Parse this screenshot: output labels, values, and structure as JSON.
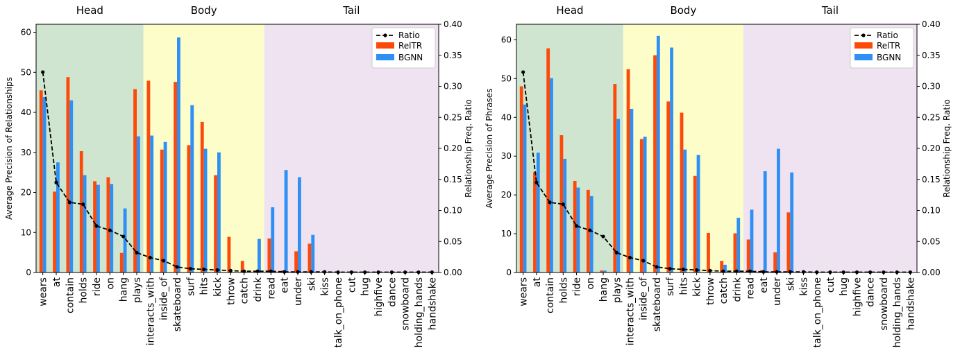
{
  "chart_data": [
    {
      "type": "bar",
      "ylabel": "Average Precision of Relationships",
      "y2label": "Relationship Freq. Ratio",
      "ylim": [
        0,
        62
      ],
      "yticks": [
        0,
        10,
        20,
        30,
        40,
        50,
        60
      ],
      "y2lim": [
        0,
        0.4
      ],
      "y2ticks": [
        "0.00",
        "0.05",
        "0.10",
        "0.15",
        "0.20",
        "0.25",
        "0.30",
        "0.35",
        "0.40"
      ],
      "regions": [
        {
          "name": "Head",
          "color": "#cfe5cf",
          "start": 0,
          "end": 8
        },
        {
          "name": "Body",
          "color": "#fdfdca",
          "start": 8,
          "end": 17
        },
        {
          "name": "Tail",
          "color": "#efe3f1",
          "start": 17,
          "end": 30
        }
      ],
      "categories": [
        "wears",
        "at",
        "contain",
        "holds",
        "ride",
        "on",
        "hang",
        "plays",
        "interacts_with",
        "inside_of",
        "skateboard",
        "surf",
        "hits",
        "kick",
        "throw",
        "catch",
        "drink",
        "read",
        "eat",
        "under",
        "ski",
        "kiss",
        "talk_on_phone",
        "cut",
        "hug",
        "highfive",
        "dance",
        "snowboard",
        "holding_hands",
        "handshake"
      ],
      "series": [
        {
          "name": "RelTR",
          "color": "#fc4a0a",
          "values": [
            45.5,
            20.2,
            48.8,
            30.3,
            22.8,
            23.8,
            4.9,
            45.8,
            47.9,
            30.7,
            47.6,
            31.8,
            37.6,
            24.3,
            8.9,
            2.9,
            0.3,
            8.5,
            0.5,
            5.3,
            7.2,
            0,
            0,
            0,
            0,
            0,
            0,
            0,
            0,
            0
          ]
        },
        {
          "name": "BGNN",
          "color": "#2e8ff5",
          "values": [
            43.8,
            27.5,
            43.0,
            24.3,
            21.9,
            22.1,
            16.0,
            34.0,
            34.2,
            32.6,
            58.7,
            41.8,
            30.9,
            30.0,
            0,
            0,
            8.4,
            16.3,
            25.6,
            23.8,
            9.4,
            0,
            0,
            0,
            0,
            0,
            0,
            0,
            0,
            0
          ]
        }
      ],
      "ratio": {
        "name": "Ratio",
        "color": "#000000",
        "values": [
          0.323,
          0.145,
          0.113,
          0.11,
          0.075,
          0.068,
          0.058,
          0.032,
          0.024,
          0.019,
          0.009,
          0.006,
          0.005,
          0.004,
          0.003,
          0.002,
          0.002,
          0.002,
          0.001,
          0.001,
          0.001,
          0.001,
          0.0005,
          0.0005,
          0.0005,
          0.0005,
          0.0005,
          0.0005,
          0.0005,
          0.0005
        ]
      },
      "legend": "top-right",
      "grid": false
    },
    {
      "type": "bar",
      "ylabel": "Average Precision of Phrases",
      "y2label": "Relationship Freq. Ratio",
      "ylim": [
        0,
        64
      ],
      "yticks": [
        0,
        10,
        20,
        30,
        40,
        50,
        60
      ],
      "y2lim": [
        0,
        0.4
      ],
      "y2ticks": [
        "0.00",
        "0.05",
        "0.10",
        "0.15",
        "0.20",
        "0.25",
        "0.30",
        "0.35",
        "0.40"
      ],
      "regions": [
        {
          "name": "Head",
          "color": "#cfe5cf",
          "start": 0,
          "end": 8
        },
        {
          "name": "Body",
          "color": "#fdfdca",
          "start": 8,
          "end": 17
        },
        {
          "name": "Tail",
          "color": "#efe3f1",
          "start": 17,
          "end": 30
        }
      ],
      "categories": [
        "wears",
        "at",
        "contain",
        "holds",
        "ride",
        "on",
        "hang",
        "plays",
        "interacts_with",
        "inside_of",
        "skateboard",
        "surf",
        "hits",
        "kick",
        "throw",
        "catch",
        "drink",
        "read",
        "eat",
        "under",
        "ski",
        "kiss",
        "talk_on_phone",
        "cut",
        "hug",
        "highfive",
        "dance",
        "snowboard",
        "holding_hands",
        "handshake"
      ],
      "series": [
        {
          "name": "RelTR",
          "color": "#fc4a0a",
          "values": [
            48.0,
            25.9,
            57.8,
            35.4,
            23.6,
            21.3,
            0.5,
            48.6,
            52.4,
            34.4,
            56.0,
            44.1,
            41.2,
            24.9,
            10.2,
            3.0,
            10.1,
            8.5,
            0.6,
            5.2,
            15.5,
            0,
            0,
            0,
            0,
            0,
            0,
            0,
            0,
            0
          ]
        },
        {
          "name": "BGNN",
          "color": "#2e8ff5",
          "values": [
            43.3,
            30.9,
            50.1,
            29.3,
            21.9,
            19.7,
            0.5,
            39.6,
            42.2,
            35.0,
            61.0,
            58.0,
            31.7,
            30.3,
            0,
            2.0,
            14.1,
            16.2,
            26.1,
            31.9,
            25.8,
            0,
            0,
            0,
            0,
            0,
            0,
            0,
            0,
            0
          ]
        }
      ],
      "ratio": {
        "name": "Ratio",
        "color": "#000000",
        "values": [
          0.323,
          0.145,
          0.113,
          0.11,
          0.075,
          0.068,
          0.058,
          0.032,
          0.024,
          0.019,
          0.009,
          0.006,
          0.005,
          0.004,
          0.003,
          0.002,
          0.002,
          0.002,
          0.001,
          0.001,
          0.001,
          0.001,
          0.0005,
          0.0005,
          0.0005,
          0.0005,
          0.0005,
          0.0005,
          0.0005,
          0.0005
        ]
      },
      "legend": "top-right",
      "grid": false
    }
  ]
}
